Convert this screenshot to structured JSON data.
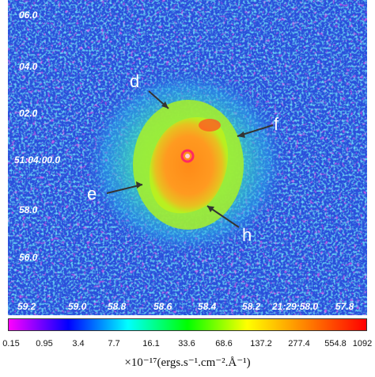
{
  "image": {
    "y_ticks": [
      "06.0",
      "04.0",
      "02.0",
      "51:04:00.0",
      "58.0",
      "56.0"
    ],
    "x_ticks": [
      "59.2",
      "59.0",
      "58.8",
      "58.6",
      "58.4",
      "58.2",
      "21:29:58.0",
      "57.8"
    ],
    "regions": [
      "d",
      "f",
      "e",
      "h"
    ],
    "colorbar": {
      "ticks": [
        "0.15",
        "0.95",
        "3.4",
        "7.7",
        "16.1",
        "33.6",
        "68.6",
        "137.2",
        "277.4",
        "554.8",
        "1092"
      ],
      "unit": "×10⁻¹⁷(ergs.s⁻¹.cm⁻².Å⁻¹)",
      "colors": [
        "#ff00ff",
        "#0000ff",
        "#00ffff",
        "#00ff00",
        "#ffff00",
        "#ff8000",
        "#ff0000"
      ]
    },
    "palette": {
      "background": "#2a4fdc",
      "nebula_outer": "#30e0c0",
      "nebula_mid": "#a0f020",
      "nebula_core": "#ff9a20",
      "star": "#ff3050"
    }
  }
}
